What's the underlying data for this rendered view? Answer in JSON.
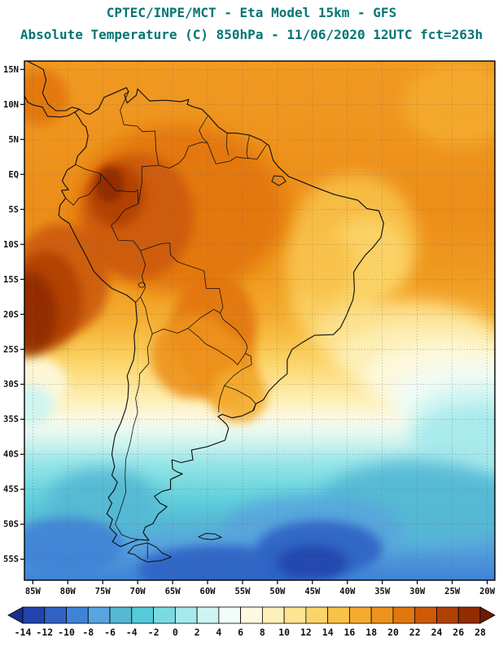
{
  "header": {
    "title_line1": "CPTEC/INPE/MCT -  Eta Model 15km - GFS",
    "title_line2": "Absolute Temperature (C) 850hPa - 11/06/2020 12UTC fct=263h",
    "title_color": "#047575"
  },
  "map": {
    "lat_tick_labels": [
      "15N",
      "10N",
      "5N",
      "EQ",
      "5S",
      "10S",
      "15S",
      "20S",
      "25S",
      "30S",
      "35S",
      "40S",
      "45S",
      "50S",
      "55S"
    ],
    "lon_tick_labels": [
      "85W",
      "80W",
      "75W",
      "70W",
      "65W",
      "60W",
      "55W",
      "50W",
      "45W",
      "40W",
      "35W",
      "30W",
      "25W",
      "20W"
    ]
  },
  "chart_data": {
    "type": "heatmap",
    "title": "CPTEC/INPE/MCT -  Eta Model 15km - GFS",
    "subtitle": "Absolute Temperature (C) 850hPa - 11/06/2020 12UTC fct=263h",
    "variable": "Absolute Temperature",
    "units": "C",
    "level": "850hPa",
    "model": "Eta Model 15km",
    "boundary_conditions": "GFS",
    "init_time": "11/06/2020 12UTC",
    "forecast_hour": "fct=263h",
    "region": "South America",
    "x_axis": {
      "label": "longitude",
      "ticks": [
        "85W",
        "80W",
        "75W",
        "70W",
        "65W",
        "60W",
        "55W",
        "50W",
        "45W",
        "40W",
        "35W",
        "30W",
        "25W",
        "20W"
      ]
    },
    "y_axis": {
      "label": "latitude",
      "ticks": [
        "15N",
        "10N",
        "5N",
        "EQ",
        "5S",
        "10S",
        "15S",
        "20S",
        "25S",
        "30S",
        "35S",
        "40S",
        "45S",
        "50S",
        "55S"
      ]
    },
    "colorbar": {
      "interval_C": 2,
      "tick_labels": [
        "-14",
        "-12",
        "-10",
        "-8",
        "-6",
        "-4",
        "-2",
        "0",
        "2",
        "4",
        "6",
        "8",
        "10",
        "12",
        "14",
        "16",
        "18",
        "20",
        "22",
        "24",
        "26",
        "28"
      ],
      "colors": [
        "#1b2d8f",
        "#2244ad",
        "#2f62c4",
        "#3f83d6",
        "#58a4de",
        "#55b8d4",
        "#55cbd9",
        "#79dbe1",
        "#a5e9ec",
        "#cdf4f2",
        "#f0fcf8",
        "#fdf9e0",
        "#fdf0b8",
        "#fde392",
        "#fbd469",
        "#f8c149",
        "#f4ab2e",
        "#ee921c",
        "#e2760f",
        "#cc5a08",
        "#b04104",
        "#912b02",
        "#711a01"
      ]
    },
    "field_gradient": [
      {
        "offset": 0.0,
        "color": "#f09a22"
      },
      {
        "offset": 0.15,
        "color": "#ee941e"
      },
      {
        "offset": 0.29,
        "color": "#ec8d18"
      },
      {
        "offset": 0.41,
        "color": "#ef9a20"
      },
      {
        "offset": 0.49,
        "color": "#f4ab2e"
      },
      {
        "offset": 0.54,
        "color": "#f8c149"
      },
      {
        "offset": 0.58,
        "color": "#fbd469"
      },
      {
        "offset": 0.62,
        "color": "#fde392"
      },
      {
        "offset": 0.655,
        "color": "#fdf0b8"
      },
      {
        "offset": 0.685,
        "color": "#fcf7e0"
      },
      {
        "offset": 0.71,
        "color": "#eaf9f0"
      },
      {
        "offset": 0.74,
        "color": "#c9f2ee"
      },
      {
        "offset": 0.77,
        "color": "#9ce6e9"
      },
      {
        "offset": 0.81,
        "color": "#79dbe1"
      },
      {
        "offset": 0.85,
        "color": "#5ecddb"
      },
      {
        "offset": 0.89,
        "color": "#55b8d4"
      },
      {
        "offset": 0.93,
        "color": "#58a4de"
      },
      {
        "offset": 1.0,
        "color": "#3f83d6"
      }
    ],
    "field_summary": [
      {
        "region": "Northern South America / Amazon basin (5N-10S, 75-55W)",
        "temp_C": "20 to 26"
      },
      {
        "region": "NW Amazon core (Colombia/Peru border)",
        "temp_C": "26 to 28"
      },
      {
        "region": "SE Pacific off Peru and N Chile (85-72W, 10-25S)",
        "temp_C": "24 to 28"
      },
      {
        "region": "Eastern Brazil (45-35W, 5-20S)",
        "temp_C": "12 to 18"
      },
      {
        "region": "Warm tongue Paraguay to Uruguay coast (62-54W, 20-33S)",
        "temp_C": "16 to 24"
      },
      {
        "region": "Subtropical Atlantic pale band (25-35S)",
        "temp_C": "4 to 10"
      },
      {
        "region": "Patagonia and S Atlantic (38-50S)",
        "temp_C": "-4 to 4"
      },
      {
        "region": "Far south cold cores (50-55S, around 45W)",
        "temp_C": "-12 to -6"
      },
      {
        "region": "Tropical Atlantic NE corner (35-20W, 0-15N)",
        "temp_C": "16 to 20"
      }
    ],
    "sampled_values_note": "approximate values (C) read from shading at lat rows x lon cols",
    "sampled_lons": [
      "80W",
      "70W",
      "60W",
      "50W",
      "40W",
      "30W",
      "20W"
    ],
    "sampled_rows": [
      {
        "lat": "15N",
        "values": [
          21,
          21,
          20,
          20,
          19,
          19,
          18
        ]
      },
      {
        "lat": "5N",
        "values": [
          23,
          24,
          22,
          20,
          19,
          18,
          17
        ]
      },
      {
        "lat": "5S",
        "values": [
          25,
          26,
          22,
          20,
          16,
          18,
          18
        ]
      },
      {
        "lat": "15S",
        "values": [
          27,
          22,
          21,
          18,
          14,
          16,
          16
        ]
      },
      {
        "lat": "25S",
        "values": [
          19,
          16,
          19,
          17,
          12,
          10,
          8
        ]
      },
      {
        "lat": "35S",
        "values": [
          10,
          7,
          8,
          6,
          5,
          4,
          3
        ]
      },
      {
        "lat": "45S",
        "values": [
          2,
          1,
          0,
          -1,
          -2,
          -2,
          -3
        ]
      },
      {
        "lat": "55S",
        "values": [
          -5,
          -7,
          -8,
          -11,
          -10,
          -8,
          -7
        ]
      }
    ]
  }
}
